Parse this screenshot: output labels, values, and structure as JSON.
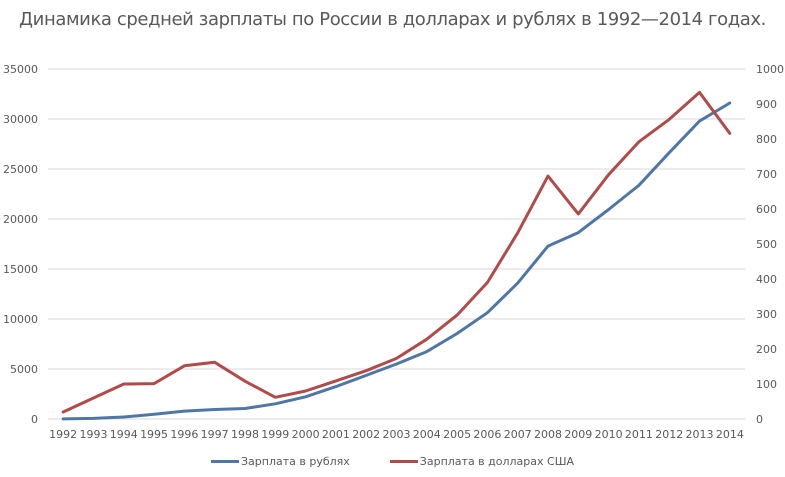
{
  "chart_data": {
    "type": "line",
    "title": "Динамика средней зарплаты по России в долларах и рублях в 1992—2014 годах.",
    "xlabel": "",
    "ylabel_left": "",
    "ylabel_right": "",
    "categories": [
      "1992",
      "1993",
      "1994",
      "1995",
      "1996",
      "1997",
      "1998",
      "1999",
      "2000",
      "2001",
      "2002",
      "2003",
      "2004",
      "2005",
      "2006",
      "2007",
      "2008",
      "2009",
      "2010",
      "2011",
      "2012",
      "2013",
      "2014"
    ],
    "series": [
      {
        "name": "Зарплата в рублях",
        "axis": "left",
        "color": "#4F77A6",
        "values": [
          6,
          60,
          200,
          480,
          790,
          950,
          1050,
          1520,
          2220,
          3240,
          4360,
          5500,
          6740,
          8550,
          10630,
          13590,
          17290,
          18640,
          20950,
          23370,
          26630,
          29790,
          31600
        ]
      },
      {
        "name": "Зарплата в долларах США",
        "axis": "right",
        "color": "#B04B4A",
        "values": [
          20,
          60,
          100,
          101,
          152,
          162,
          108,
          62,
          80,
          109,
          138,
          173,
          228,
          297,
          390,
          532,
          694,
          586,
          698,
          792,
          856,
          933,
          816
        ]
      }
    ],
    "ylim_left": [
      0,
      35000
    ],
    "yticks_left": [
      0,
      5000,
      10000,
      15000,
      20000,
      25000,
      30000,
      35000
    ],
    "ylim_right": [
      0,
      1000
    ],
    "yticks_right": [
      0,
      100,
      200,
      300,
      400,
      500,
      600,
      700,
      800,
      900,
      1000
    ],
    "grid": true,
    "legend_position": "bottom"
  },
  "title": "Динамика средней зарплаты по России в долларах и рублях в 1992—2014 годах.",
  "legend": {
    "rub": "Зарплата в рублях",
    "usd": "Зарплата в долларах США"
  }
}
